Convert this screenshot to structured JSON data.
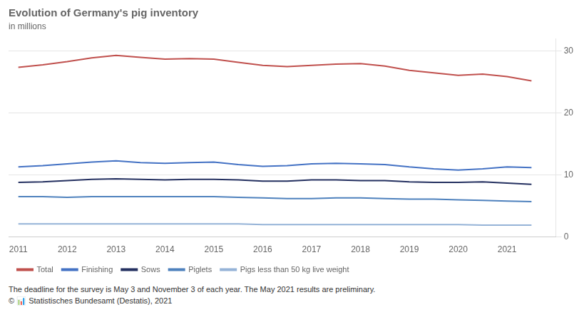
{
  "chart_data": {
    "type": "line",
    "title": "Evolution of Germany's pig inventory",
    "subtitle": "in millions",
    "annotations": [
      "The deadline for the survey is May 3 and November 3 of each year. The May 2021 results are preliminary.",
      "© 📊 Statistisches Bundesamt (Destatis), 2021"
    ],
    "x": [
      2011.0,
      2011.5,
      2012.0,
      2012.5,
      2013.0,
      2013.5,
      2014.0,
      2014.5,
      2015.0,
      2015.5,
      2016.0,
      2016.5,
      2017.0,
      2017.5,
      2018.0,
      2018.5,
      2019.0,
      2019.5,
      2020.0,
      2020.5,
      2021.0,
      2021.5
    ],
    "series": [
      {
        "name": "Total",
        "color": "#c0504d",
        "values": [
          27.4,
          27.8,
          28.3,
          28.9,
          29.3,
          29.0,
          28.7,
          28.8,
          28.7,
          28.2,
          27.7,
          27.5,
          27.7,
          27.9,
          28.0,
          27.6,
          26.9,
          26.5,
          26.1,
          26.3,
          25.9,
          25.2
        ]
      },
      {
        "name": "Finishing",
        "color": "#4472c4",
        "values": [
          11.3,
          11.5,
          11.8,
          12.1,
          12.3,
          12.0,
          11.9,
          12.0,
          12.1,
          11.7,
          11.4,
          11.5,
          11.8,
          11.9,
          11.8,
          11.7,
          11.3,
          11.0,
          10.8,
          11.0,
          11.3,
          11.2
        ]
      },
      {
        "name": "Sows",
        "color": "#243060",
        "values": [
          8.8,
          8.9,
          9.1,
          9.3,
          9.4,
          9.3,
          9.2,
          9.3,
          9.3,
          9.2,
          9.0,
          9.0,
          9.2,
          9.2,
          9.1,
          9.1,
          8.9,
          8.8,
          8.8,
          8.9,
          8.7,
          8.5
        ]
      },
      {
        "name": "Piglets",
        "color": "#4e81bd",
        "values": [
          6.5,
          6.5,
          6.4,
          6.5,
          6.5,
          6.5,
          6.5,
          6.5,
          6.5,
          6.4,
          6.3,
          6.2,
          6.2,
          6.3,
          6.3,
          6.2,
          6.1,
          6.1,
          6.0,
          5.9,
          5.8,
          5.7
        ]
      },
      {
        "name": "Pigs less than 50 kg live weight",
        "color": "#95b3d7",
        "values": [
          2.1,
          2.1,
          2.1,
          2.1,
          2.1,
          2.1,
          2.1,
          2.1,
          2.1,
          2.1,
          2.0,
          2.0,
          2.0,
          2.0,
          2.0,
          2.0,
          2.0,
          2.0,
          2.0,
          1.9,
          1.9,
          1.9
        ]
      }
    ],
    "xlim": [
      2010.8,
      2022.0
    ],
    "xticks": [
      2011,
      2012,
      2013,
      2014,
      2015,
      2016,
      2017,
      2018,
      2019,
      2020,
      2021
    ],
    "ylim": [
      0,
      32
    ],
    "yticks": [
      0,
      10,
      20,
      30
    ],
    "grid": true,
    "legend": "bottom"
  }
}
